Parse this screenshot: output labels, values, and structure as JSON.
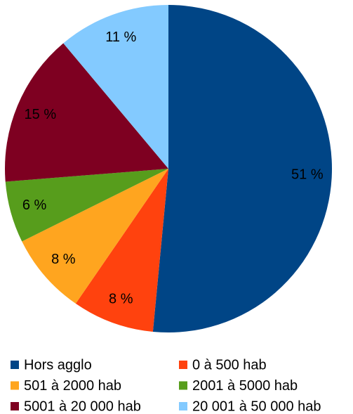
{
  "chart_data": {
    "type": "pie",
    "categories": [
      "Hors agglo",
      "0 à 500 hab",
      "501 à 2000 hab",
      "2001 à 5000 hab",
      "5001 à 20 000 hab",
      "20 001 à 50 000 hab"
    ],
    "values": [
      51,
      8,
      8,
      6,
      15,
      11
    ],
    "value_labels": [
      "51 %",
      "8 %",
      "8 %",
      "6 %",
      "15 %",
      "11 %"
    ],
    "colors": [
      "#004586",
      "#ff420e",
      "#ffa51f",
      "#579d1c",
      "#7e0021",
      "#83caff"
    ],
    "legend": "bottom"
  }
}
